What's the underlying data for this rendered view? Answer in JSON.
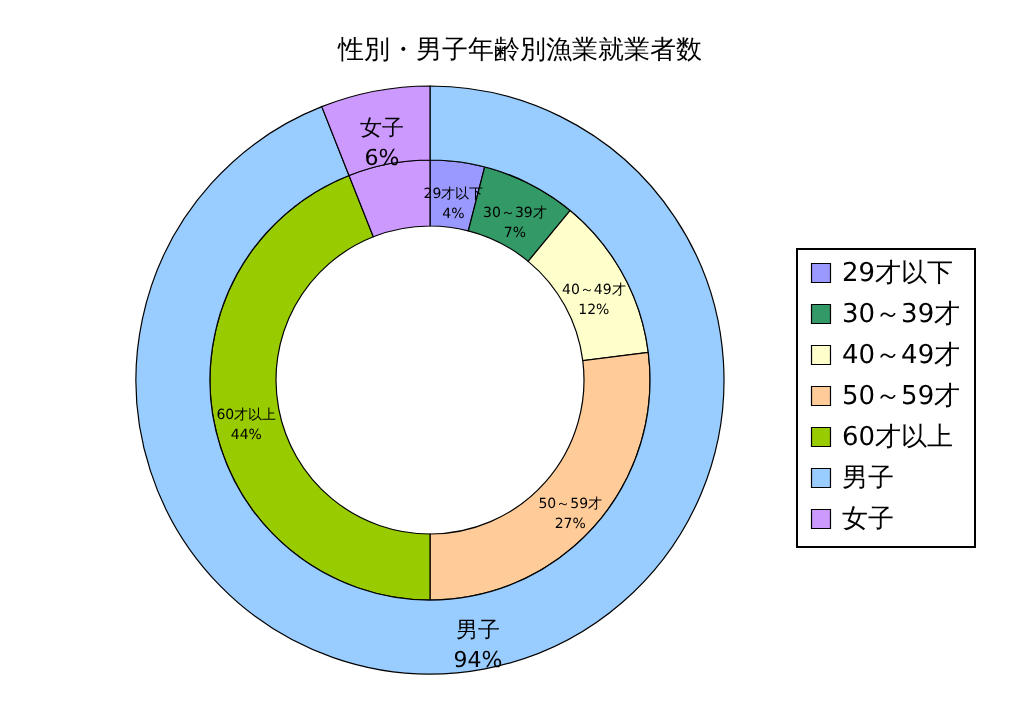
{
  "chart_data": {
    "type": "donut",
    "title": "性別・男子年齢別漁業就業者数",
    "categories": [
      "29才以下",
      "30～39才",
      "40～49才",
      "50～59才",
      "60才以上",
      "男子",
      "女子"
    ],
    "colors": [
      "#9999ff",
      "#339966",
      "#ffffcc",
      "#ffcc99",
      "#99cc00",
      "#99ccff",
      "#cc99ff"
    ],
    "series": [
      {
        "values": [
          4,
          7,
          12,
          27,
          44,
          null,
          6
        ],
        "value_labels": [
          "4%",
          "7%",
          "12%",
          "27%",
          "44%",
          null,
          null
        ]
      },
      {
        "values": [
          null,
          null,
          null,
          null,
          null,
          94,
          6
        ],
        "value_labels": [
          null,
          null,
          null,
          null,
          null,
          "94%",
          "6%"
        ]
      }
    ],
    "legend": "right"
  }
}
